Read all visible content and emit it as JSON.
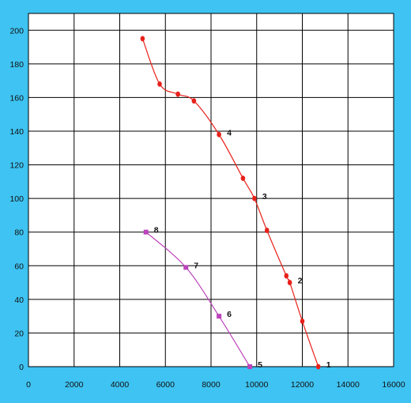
{
  "chart_data": {
    "type": "scatter",
    "xlim": [
      0,
      16000
    ],
    "ylim": [
      0,
      210
    ],
    "x_ticks": [
      "0",
      "2000",
      "4000",
      "6000",
      "8000",
      "10000",
      "12000",
      "14000",
      "16000"
    ],
    "y_ticks": [
      "0",
      "20",
      "40",
      "60",
      "80",
      "100",
      "120",
      "140",
      "160",
      "180",
      "200"
    ],
    "grid": true,
    "series": [
      {
        "color": "#e8201a",
        "marker": "circle",
        "points": [
          {
            "x": 5000,
            "y": 195
          },
          {
            "x": 5750,
            "y": 168
          },
          {
            "x": 6550,
            "y": 162
          },
          {
            "x": 7250,
            "y": 158
          },
          {
            "x": 8350,
            "y": 138
          },
          {
            "x": 9400,
            "y": 112
          },
          {
            "x": 9900,
            "y": 100
          },
          {
            "x": 10450,
            "y": 81
          },
          {
            "x": 11300,
            "y": 54
          },
          {
            "x": 11450,
            "y": 50
          },
          {
            "x": 12000,
            "y": 27
          },
          {
            "x": 12700,
            "y": 0
          }
        ],
        "annotations": [
          {
            "label": "4",
            "x": 8350,
            "y": 138
          },
          {
            "label": "3",
            "x": 9900,
            "y": 100
          },
          {
            "label": "2",
            "x": 11450,
            "y": 50
          },
          {
            "label": "1",
            "x": 12700,
            "y": 0
          }
        ]
      },
      {
        "color": "#bb44bb",
        "marker": "square",
        "points": [
          {
            "x": 5150,
            "y": 80
          },
          {
            "x": 6900,
            "y": 59
          },
          {
            "x": 8350,
            "y": 30
          },
          {
            "x": 9700,
            "y": 0
          }
        ],
        "annotations": [
          {
            "label": "8",
            "x": 5150,
            "y": 80
          },
          {
            "label": "7",
            "x": 6900,
            "y": 59
          },
          {
            "label": "6",
            "x": 8350,
            "y": 30
          },
          {
            "label": "5",
            "x": 9700,
            "y": 0
          }
        ]
      }
    ]
  }
}
